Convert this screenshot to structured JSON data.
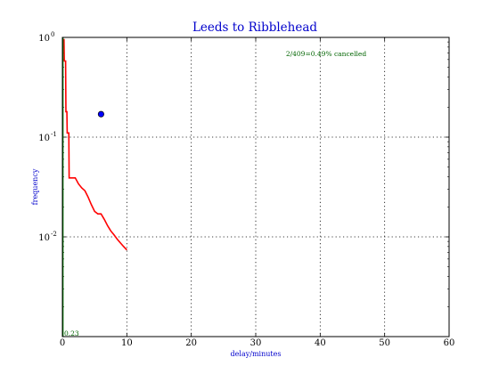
{
  "chart_data": {
    "type": "line",
    "title": "Leeds to Ribblehead",
    "xlabel": "delay/minutes",
    "ylabel": "frequency",
    "xlim": [
      0,
      60
    ],
    "ylim": [
      0.001,
      1.0
    ],
    "yscale": "log",
    "grid": true,
    "x_ticks": [
      "0",
      "10",
      "20",
      "30",
      "40",
      "50",
      "60"
    ],
    "y_ticks": [
      {
        "base": "10",
        "exp": "-2",
        "value": 0.01
      },
      {
        "base": "10",
        "exp": "-1",
        "value": 0.1
      },
      {
        "base": "10",
        "exp": "0",
        "value": 1.0
      }
    ],
    "annotation": "2/409=0.49% cancelled",
    "min_label": "0.23",
    "series": [
      {
        "name": "",
        "color": "#ff0000",
        "style": "step-line",
        "x": [
          0,
          0.25,
          0.3,
          0.5,
          0.55,
          0.7,
          0.75,
          1.0,
          1.05,
          2.0,
          2.5,
          3.0,
          3.5,
          4.0,
          4.5,
          5.0,
          5.5,
          6.0,
          6.5,
          7.0,
          7.5,
          8.0,
          8.5,
          9.0,
          9.5,
          10.0
        ],
        "y": [
          0.95,
          0.95,
          0.58,
          0.58,
          0.18,
          0.18,
          0.11,
          0.11,
          0.039,
          0.039,
          0.034,
          0.031,
          0.029,
          0.025,
          0.021,
          0.018,
          0.017,
          0.017,
          0.015,
          0.013,
          0.0115,
          0.0105,
          0.0095,
          0.0087,
          0.008,
          0.0074
        ]
      },
      {
        "name": "",
        "color": "#008000",
        "style": "line",
        "x": [
          0.1,
          0.1
        ],
        "y": [
          0.001,
          1.0
        ]
      },
      {
        "name": "",
        "color": "#0000ff",
        "style": "marker",
        "x": [
          6.0
        ],
        "y": [
          0.17
        ]
      }
    ]
  }
}
